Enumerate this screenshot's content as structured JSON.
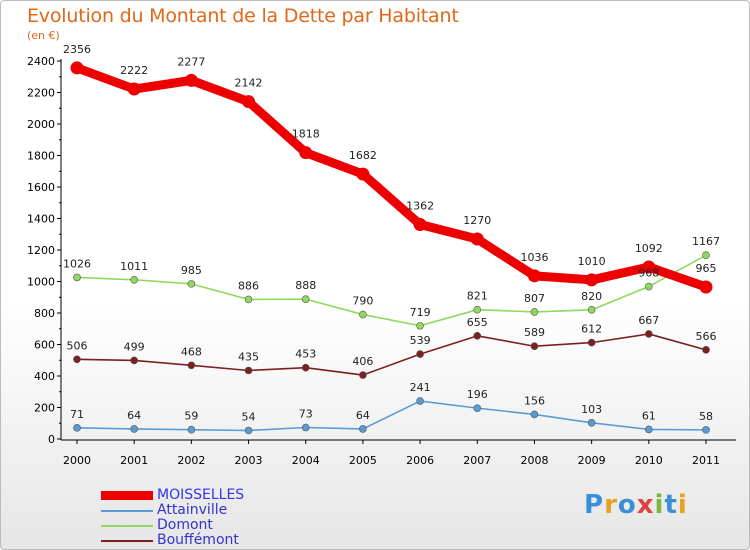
{
  "title": "Evolution du Montant de la Dette par Habitant",
  "unit_label": "(en €)",
  "logo": {
    "text": "Proxiti",
    "colors": [
      "#3a8fd8",
      "#e8a020",
      "#3a8fd8",
      "#e04040",
      "#7ab83a",
      "#3a8fd8",
      "#e8a020"
    ]
  },
  "chart_data": {
    "type": "line",
    "title": "Evolution du Montant de la Dette par Habitant",
    "ylabel": "(en €)",
    "xlabel": "",
    "ylim": [
      0,
      2400
    ],
    "yticks": [
      0,
      200,
      400,
      600,
      800,
      1000,
      1200,
      1400,
      1600,
      1800,
      2000,
      2200,
      2400
    ],
    "categories": [
      "2000",
      "2001",
      "2002",
      "2003",
      "2004",
      "2005",
      "2006",
      "2007",
      "2008",
      "2009",
      "2010",
      "2011"
    ],
    "grid": false,
    "legend_position": "bottom-left",
    "series": [
      {
        "name": "MOISSELLES",
        "color": "#ee0000",
        "label_color": "#3333ee",
        "values": [
          2356,
          2222,
          2277,
          2142,
          1818,
          1682,
          1362,
          1270,
          1036,
          1010,
          1092,
          965
        ]
      },
      {
        "name": "Attainville",
        "color": "#5b9bd5",
        "label_color": "#3333cc",
        "values": [
          71,
          64,
          59,
          54,
          73,
          64,
          241,
          196,
          156,
          103,
          61,
          58
        ]
      },
      {
        "name": "Domont",
        "color": "#90d860",
        "label_color": "#3333cc",
        "values": [
          1026,
          1011,
          985,
          886,
          888,
          790,
          719,
          821,
          807,
          820,
          968,
          1167
        ]
      },
      {
        "name": "Bouffémont",
        "color": "#7a2020",
        "label_color": "#3333cc",
        "values": [
          506,
          499,
          468,
          435,
          453,
          406,
          539,
          655,
          589,
          612,
          667,
          566
        ]
      }
    ]
  }
}
